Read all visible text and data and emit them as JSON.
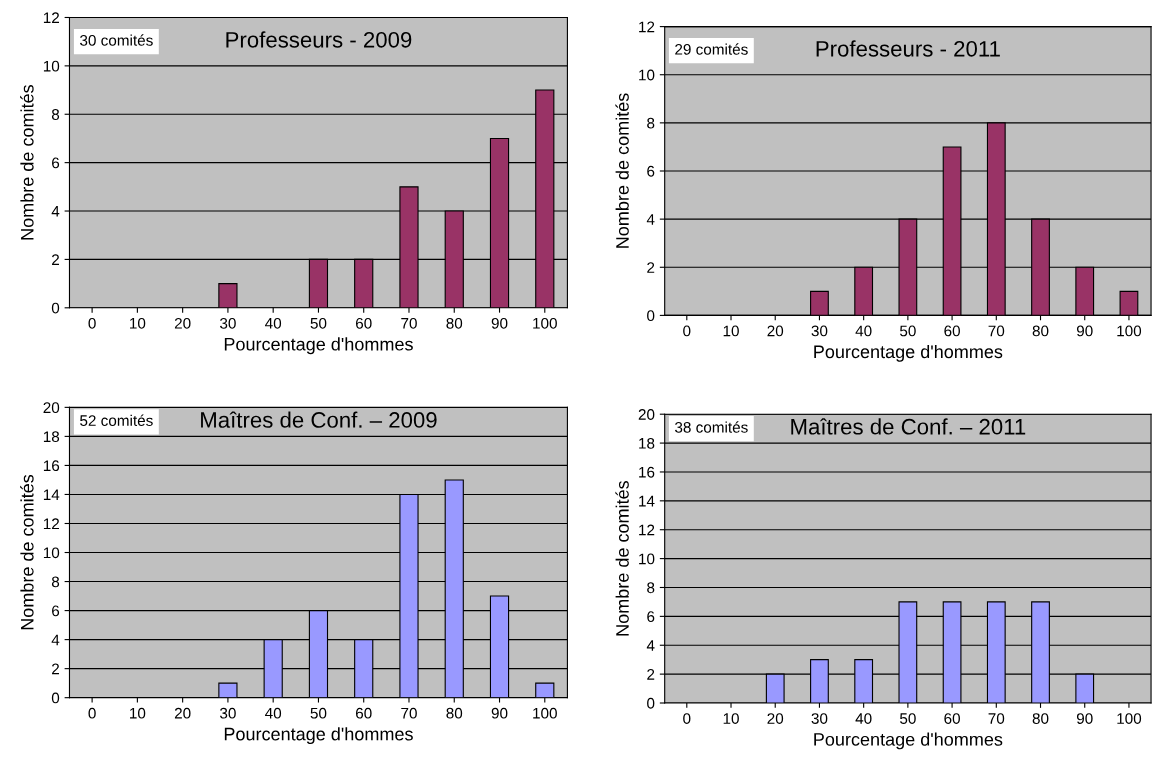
{
  "chart_data": [
    {
      "type": "bar",
      "title": "Professeurs - 2009",
      "xlabel": "Pourcentage d'hommes",
      "ylabel": "Nombre de comités",
      "annotations": [
        "30 comités"
      ],
      "categories": [
        "0",
        "10",
        "20",
        "30",
        "40",
        "50",
        "60",
        "70",
        "80",
        "90",
        "100"
      ],
      "values": [
        0,
        0,
        0,
        1,
        0,
        2,
        2,
        5,
        4,
        7,
        9
      ],
      "color": "#993366",
      "ylim": [
        0,
        12
      ],
      "yticks": [
        0,
        2,
        4,
        6,
        8,
        10,
        12
      ],
      "grid": "y"
    },
    {
      "type": "bar",
      "title": "Professeurs - 2011",
      "xlabel": "Pourcentage d'hommes",
      "ylabel": "Nombre de comités",
      "annotations": [
        "29 comités"
      ],
      "categories": [
        "0",
        "10",
        "20",
        "30",
        "40",
        "50",
        "60",
        "70",
        "80",
        "90",
        "100"
      ],
      "values": [
        0,
        0,
        0,
        1,
        2,
        4,
        7,
        8,
        4,
        2,
        1
      ],
      "color": "#993366",
      "ylim": [
        0,
        12
      ],
      "yticks": [
        0,
        2,
        4,
        6,
        8,
        10,
        12
      ],
      "grid": "y"
    },
    {
      "type": "bar",
      "title": "Maîtres de Conf. – 2009",
      "xlabel": "Pourcentage d'hommes",
      "ylabel": "Nombre de comités",
      "annotations": [
        "52 comités"
      ],
      "categories": [
        "0",
        "10",
        "20",
        "30",
        "40",
        "50",
        "60",
        "70",
        "80",
        "90",
        "100"
      ],
      "values": [
        0,
        0,
        0,
        1,
        4,
        6,
        4,
        14,
        15,
        7,
        1
      ],
      "color": "#9999ff",
      "ylim": [
        0,
        20
      ],
      "yticks": [
        0,
        2,
        4,
        6,
        8,
        10,
        12,
        14,
        16,
        18,
        20
      ],
      "grid": "y"
    },
    {
      "type": "bar",
      "title": "Maîtres de Conf. – 2011",
      "xlabel": "Pourcentage d'hommes",
      "ylabel": "Nombre de comités",
      "annotations": [
        "38 comités"
      ],
      "categories": [
        "0",
        "10",
        "20",
        "30",
        "40",
        "50",
        "60",
        "70",
        "80",
        "90",
        "100"
      ],
      "values": [
        0,
        0,
        2,
        3,
        3,
        7,
        7,
        7,
        7,
        2,
        0
      ],
      "color": "#9999ff",
      "ylim": [
        0,
        20
      ],
      "yticks": [
        0,
        2,
        4,
        6,
        8,
        10,
        12,
        14,
        16,
        18,
        20
      ],
      "grid": "y"
    }
  ]
}
